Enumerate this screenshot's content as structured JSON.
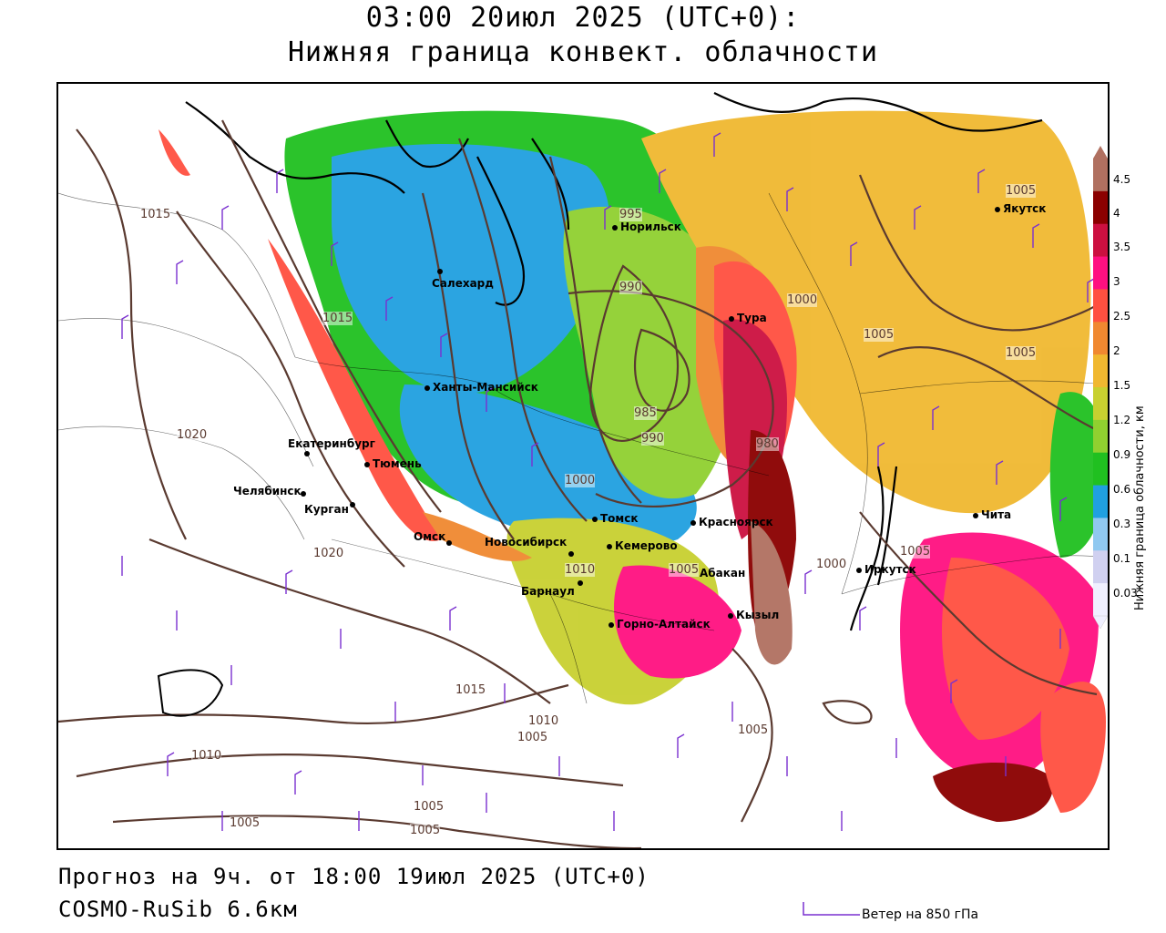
{
  "title": {
    "line1": "03:00 20июл 2025 (UTC+0):",
    "line2": "Нижняя граница конвект. облачности"
  },
  "footer": {
    "forecast": "Прогноз на 9ч. от 18:00 19июл 2025 (UTC+0)",
    "model": "COSMO-RuSib 6.6км",
    "wind_legend": "Ветер на 850 гПа"
  },
  "legend": {
    "label": "Нижняя граница облачности, км",
    "ticks": [
      "4.5",
      "4",
      "3.5",
      "3",
      "2.5",
      "2",
      "1.5",
      "1.2",
      "0.9",
      "0.6",
      "0.3",
      "0.1",
      "0.03"
    ],
    "colors": [
      "#b07060",
      "#8b0000",
      "#cc1040",
      "#ff1080",
      "#ff5040",
      "#f08830",
      "#f0b830",
      "#c8d030",
      "#90d030",
      "#20c020",
      "#20a0e0",
      "#90c8f0",
      "#d0d0f0",
      "#f0f0ff"
    ]
  },
  "cities": [
    {
      "name": "Якутск"
    },
    {
      "name": "Норильск"
    },
    {
      "name": "Салехард"
    },
    {
      "name": "Тура"
    },
    {
      "name": "Ханты-Мансийск"
    },
    {
      "name": "Екатеринбург"
    },
    {
      "name": "Тюмень"
    },
    {
      "name": "Челябинск"
    },
    {
      "name": "Курган"
    },
    {
      "name": "Омск"
    },
    {
      "name": "Новосибирск"
    },
    {
      "name": "Томск"
    },
    {
      "name": "Кемерово"
    },
    {
      "name": "Красноярск"
    },
    {
      "name": "Барнаул"
    },
    {
      "name": "Горно-Алтайск"
    },
    {
      "name": "Кызыл"
    },
    {
      "name": "Иркутск"
    },
    {
      "name": "Чита"
    },
    {
      "name": "Абакан"
    }
  ],
  "isobars": [
    "1015",
    "1015",
    "1020",
    "1020",
    "995",
    "990",
    "985",
    "990",
    "1000",
    "1010",
    "1005",
    "1005",
    "1000",
    "1005",
    "1005",
    "1005",
    "1015",
    "1010",
    "1005",
    "1010",
    "1005",
    "1005",
    "1005",
    "1005",
    "980",
    "1000"
  ],
  "colors": {
    "isobar": "#5a3a30",
    "wind_barb": "#7a30d0",
    "coast": "#000000"
  }
}
